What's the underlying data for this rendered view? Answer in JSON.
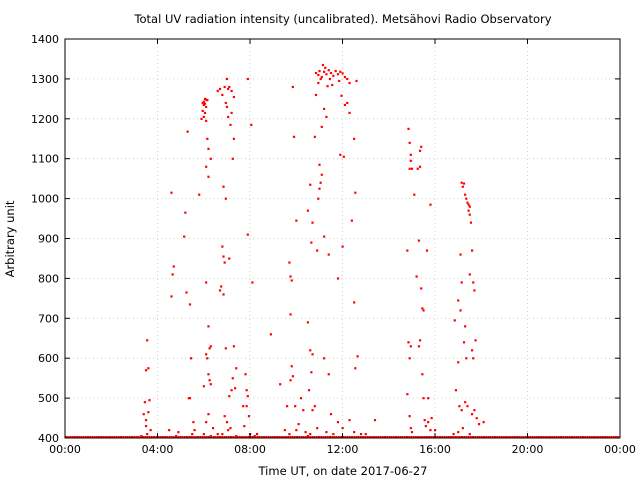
{
  "chart_data": {
    "type": "scatter",
    "title": "Total UV radiation intensity (uncalibrated). Metsähovi Radio Observatory",
    "xlabel": "Time UT, on date 2017-06-27",
    "ylabel": "Arbitrary unit",
    "xlim": [
      0,
      24
    ],
    "ylim": [
      400,
      1400
    ],
    "x_ticks": [
      0,
      4,
      8,
      12,
      16,
      20,
      24
    ],
    "x_tick_labels": [
      "00:00",
      "04:00",
      "08:00",
      "12:00",
      "16:00",
      "20:00",
      "00:00"
    ],
    "y_ticks": [
      400,
      500,
      600,
      700,
      800,
      900,
      1000,
      1100,
      1200,
      1300,
      1400
    ],
    "y_tick_labels": [
      "400",
      "500",
      "600",
      "700",
      "800",
      "900",
      "1000",
      "1100",
      "1200",
      "1300",
      "1400"
    ],
    "grid": true,
    "point_color": "#ff0000",
    "baseline_y": 400,
    "points": [
      [
        3.45,
        490
      ],
      [
        3.5,
        570
      ],
      [
        3.55,
        645
      ],
      [
        3.6,
        575
      ],
      [
        3.4,
        460
      ],
      [
        3.6,
        465
      ],
      [
        3.65,
        495
      ],
      [
        3.5,
        430
      ],
      [
        3.55,
        410
      ],
      [
        3.7,
        420
      ],
      [
        3.3,
        405
      ],
      [
        3.5,
        445
      ],
      [
        4.6,
        1015
      ],
      [
        4.7,
        830
      ],
      [
        4.65,
        810
      ],
      [
        4.6,
        755
      ],
      [
        4.9,
        415
      ],
      [
        4.5,
        420
      ],
      [
        4.8,
        405
      ],
      [
        5.2,
        965
      ],
      [
        5.15,
        905
      ],
      [
        5.3,
        1168
      ],
      [
        5.25,
        765
      ],
      [
        5.4,
        735
      ],
      [
        5.45,
        600
      ],
      [
        5.4,
        500
      ],
      [
        5.35,
        500
      ],
      [
        5.55,
        440
      ],
      [
        5.6,
        420
      ],
      [
        5.5,
        410
      ],
      [
        5.8,
        1010
      ],
      [
        5.9,
        1200
      ],
      [
        5.95,
        1220
      ],
      [
        6.0,
        1235
      ],
      [
        6.05,
        1250
      ],
      [
        6.1,
        1248
      ],
      [
        6.0,
        1243
      ],
      [
        6.05,
        1238
      ],
      [
        6.1,
        1230
      ],
      [
        5.95,
        1240
      ],
      [
        6.15,
        1247
      ],
      [
        6.05,
        1215
      ],
      [
        6.0,
        1205
      ],
      [
        6.1,
        1195
      ],
      [
        6.15,
        1150
      ],
      [
        6.2,
        1125
      ],
      [
        6.3,
        1100
      ],
      [
        6.1,
        1080
      ],
      [
        6.2,
        1055
      ],
      [
        6.1,
        790
      ],
      [
        6.2,
        680
      ],
      [
        6.3,
        630
      ],
      [
        6.25,
        625
      ],
      [
        6.1,
        610
      ],
      [
        6.15,
        600
      ],
      [
        6.2,
        560
      ],
      [
        6.25,
        545
      ],
      [
        6.3,
        535
      ],
      [
        6.0,
        530
      ],
      [
        6.2,
        460
      ],
      [
        6.1,
        440
      ],
      [
        6.4,
        425
      ],
      [
        6.0,
        410
      ],
      [
        6.3,
        405
      ],
      [
        6.6,
        1270
      ],
      [
        6.7,
        1275
      ],
      [
        6.8,
        1260
      ],
      [
        6.9,
        1280
      ],
      [
        7.0,
        1300
      ],
      [
        7.05,
        1275
      ],
      [
        7.1,
        1280
      ],
      [
        7.2,
        1270
      ],
      [
        7.3,
        1255
      ],
      [
        6.95,
        1240
      ],
      [
        7.0,
        1230
      ],
      [
        7.05,
        1205
      ],
      [
        7.15,
        1185
      ],
      [
        7.2,
        1215
      ],
      [
        7.25,
        1100
      ],
      [
        7.3,
        1150
      ],
      [
        6.85,
        1030
      ],
      [
        6.95,
        1000
      ],
      [
        6.8,
        880
      ],
      [
        6.85,
        855
      ],
      [
        6.9,
        840
      ],
      [
        6.75,
        780
      ],
      [
        6.7,
        770
      ],
      [
        6.85,
        760
      ],
      [
        7.1,
        850
      ],
      [
        6.95,
        625
      ],
      [
        7.3,
        630
      ],
      [
        7.4,
        575
      ],
      [
        7.25,
        550
      ],
      [
        7.35,
        525
      ],
      [
        7.2,
        520
      ],
      [
        7.1,
        505
      ],
      [
        6.9,
        455
      ],
      [
        7.0,
        440
      ],
      [
        7.15,
        425
      ],
      [
        7.05,
        420
      ],
      [
        6.8,
        410
      ],
      [
        7.4,
        405
      ],
      [
        6.6,
        410
      ],
      [
        7.9,
        1300
      ],
      [
        8.05,
        1185
      ],
      [
        7.9,
        910
      ],
      [
        8.1,
        790
      ],
      [
        7.8,
        560
      ],
      [
        7.85,
        520
      ],
      [
        7.9,
        505
      ],
      [
        7.7,
        480
      ],
      [
        7.85,
        480
      ],
      [
        7.95,
        455
      ],
      [
        8.0,
        410
      ],
      [
        8.2,
        405
      ],
      [
        7.75,
        430
      ],
      [
        8.3,
        410
      ],
      [
        8.9,
        660
      ],
      [
        9.3,
        535
      ],
      [
        9.5,
        420
      ],
      [
        9.6,
        480
      ],
      [
        9.7,
        840
      ],
      [
        9.75,
        805
      ],
      [
        9.8,
        795
      ],
      [
        9.85,
        1280
      ],
      [
        9.9,
        1155
      ],
      [
        10.0,
        945
      ],
      [
        9.75,
        710
      ],
      [
        9.8,
        580
      ],
      [
        9.75,
        545
      ],
      [
        9.85,
        555
      ],
      [
        9.95,
        480
      ],
      [
        10.0,
        420
      ],
      [
        9.7,
        410
      ],
      [
        10.2,
        500
      ],
      [
        10.3,
        470
      ],
      [
        10.1,
        435
      ],
      [
        10.4,
        415
      ],
      [
        10.5,
        405
      ],
      [
        10.5,
        970
      ],
      [
        10.6,
        1035
      ],
      [
        10.7,
        940
      ],
      [
        10.65,
        890
      ],
      [
        10.5,
        690
      ],
      [
        10.6,
        620
      ],
      [
        10.7,
        610
      ],
      [
        10.65,
        565
      ],
      [
        10.55,
        520
      ],
      [
        10.8,
        480
      ],
      [
        10.7,
        470
      ],
      [
        10.9,
        425
      ],
      [
        10.6,
        410
      ],
      [
        10.85,
        1315
      ],
      [
        10.95,
        1310
      ],
      [
        11.0,
        1320
      ],
      [
        11.1,
        1305
      ],
      [
        11.2,
        1318
      ],
      [
        11.3,
        1312
      ],
      [
        11.4,
        1322
      ],
      [
        11.5,
        1315
      ],
      [
        11.6,
        1308
      ],
      [
        11.7,
        1320
      ],
      [
        11.8,
        1312
      ],
      [
        11.9,
        1318
      ],
      [
        12.0,
        1314
      ],
      [
        12.1,
        1305
      ],
      [
        12.2,
        1300
      ],
      [
        12.3,
        1290
      ],
      [
        12.6,
        1295
      ],
      [
        11.15,
        1335
      ],
      [
        11.25,
        1328
      ],
      [
        11.05,
        1300
      ],
      [
        10.95,
        1290
      ],
      [
        11.35,
        1282
      ],
      [
        11.45,
        1300
      ],
      [
        11.55,
        1285
      ],
      [
        11.85,
        1295
      ],
      [
        10.85,
        1260
      ],
      [
        11.2,
        1225
      ],
      [
        11.3,
        1205
      ],
      [
        11.1,
        1180
      ],
      [
        10.8,
        1155
      ],
      [
        11.0,
        1085
      ],
      [
        11.1,
        1060
      ],
      [
        11.05,
        1040
      ],
      [
        11.0,
        1025
      ],
      [
        10.95,
        1000
      ],
      [
        11.95,
        1258
      ],
      [
        12.1,
        1235
      ],
      [
        12.2,
        1240
      ],
      [
        12.3,
        1215
      ],
      [
        11.9,
        1110
      ],
      [
        12.05,
        1105
      ],
      [
        12.5,
        1150
      ],
      [
        12.55,
        1015
      ],
      [
        12.4,
        945
      ],
      [
        12.0,
        880
      ],
      [
        11.2,
        905
      ],
      [
        11.4,
        860
      ],
      [
        10.9,
        870
      ],
      [
        11.8,
        800
      ],
      [
        12.5,
        740
      ],
      [
        12.65,
        605
      ],
      [
        12.55,
        575
      ],
      [
        11.2,
        600
      ],
      [
        11.4,
        560
      ],
      [
        11.5,
        460
      ],
      [
        11.8,
        440
      ],
      [
        12.0,
        425
      ],
      [
        12.3,
        445
      ],
      [
        12.5,
        415
      ],
      [
        12.8,
        410
      ],
      [
        11.6,
        410
      ],
      [
        11.3,
        415
      ],
      [
        13.4,
        445
      ],
      [
        13.0,
        410
      ],
      [
        14.8,
        870
      ],
      [
        14.85,
        1175
      ],
      [
        14.9,
        1140
      ],
      [
        14.95,
        1110
      ],
      [
        14.9,
        1075
      ],
      [
        15.0,
        1075
      ],
      [
        14.95,
        1095
      ],
      [
        15.1,
        1010
      ],
      [
        14.85,
        640
      ],
      [
        14.95,
        630
      ],
      [
        14.9,
        600
      ],
      [
        14.8,
        510
      ],
      [
        14.9,
        455
      ],
      [
        14.95,
        425
      ],
      [
        15.0,
        415
      ],
      [
        15.2,
        805
      ],
      [
        15.3,
        895
      ],
      [
        15.25,
        1075
      ],
      [
        15.35,
        1080
      ],
      [
        15.4,
        1130
      ],
      [
        15.35,
        1120
      ],
      [
        15.45,
        725
      ],
      [
        15.5,
        720
      ],
      [
        15.4,
        775
      ],
      [
        15.35,
        645
      ],
      [
        15.3,
        630
      ],
      [
        15.45,
        560
      ],
      [
        15.5,
        500
      ],
      [
        15.55,
        445
      ],
      [
        15.6,
        430
      ],
      [
        15.7,
        440
      ],
      [
        15.8,
        420
      ],
      [
        15.65,
        870
      ],
      [
        15.8,
        985
      ],
      [
        15.7,
        500
      ],
      [
        15.85,
        450
      ],
      [
        16.0,
        420
      ],
      [
        16.85,
        695
      ],
      [
        17.0,
        745
      ],
      [
        17.1,
        860
      ],
      [
        17.15,
        1040
      ],
      [
        17.2,
        1030
      ],
      [
        17.25,
        1038
      ],
      [
        17.3,
        1010
      ],
      [
        17.35,
        1000
      ],
      [
        17.4,
        990
      ],
      [
        17.45,
        985
      ],
      [
        17.5,
        980
      ],
      [
        17.45,
        970
      ],
      [
        17.5,
        960
      ],
      [
        17.55,
        940
      ],
      [
        17.15,
        790
      ],
      [
        17.1,
        720
      ],
      [
        17.3,
        680
      ],
      [
        17.25,
        640
      ],
      [
        17.35,
        600
      ],
      [
        17.5,
        810
      ],
      [
        17.6,
        870
      ],
      [
        17.65,
        790
      ],
      [
        17.7,
        770
      ],
      [
        17.6,
        620
      ],
      [
        17.65,
        600
      ],
      [
        17.0,
        590
      ],
      [
        16.9,
        520
      ],
      [
        17.05,
        480
      ],
      [
        17.15,
        470
      ],
      [
        17.3,
        490
      ],
      [
        17.4,
        480
      ],
      [
        17.6,
        460
      ],
      [
        17.7,
        470
      ],
      [
        17.75,
        645
      ],
      [
        17.8,
        450
      ],
      [
        17.9,
        435
      ],
      [
        18.1,
        440
      ],
      [
        17.2,
        425
      ],
      [
        17.0,
        415
      ],
      [
        16.8,
        410
      ],
      [
        17.5,
        410
      ]
    ]
  }
}
